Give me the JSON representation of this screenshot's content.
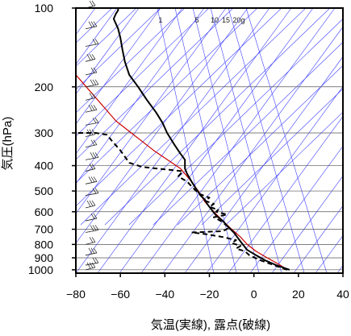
{
  "chart_data": {
    "type": "line",
    "xlabel": "気温(実線), 露点(破線)",
    "ylabel": "気圧(hPa)",
    "xlim": [
      -80,
      40
    ],
    "ylim": [
      1030,
      100
    ],
    "y_scale": "log",
    "x_ticks": [
      -80,
      -60,
      -40,
      -20,
      0,
      20,
      40
    ],
    "x_tick_labels": [
      "−80",
      "−60",
      "−40",
      "−20",
      "0",
      "20",
      "40"
    ],
    "y_ticks": [
      100,
      200,
      300,
      400,
      500,
      600,
      700,
      800,
      900,
      1000
    ],
    "y_tick_labels": [
      "100",
      "200",
      "300",
      "400",
      "500",
      "600",
      "700",
      "800",
      "900",
      "1000"
    ],
    "mixing_ratio_labels": [
      "1",
      "5",
      "10",
      "15",
      "20g"
    ],
    "series": [
      {
        "style": "solid",
        "color": "#000000",
        "points": [
          [
            16,
            1000
          ],
          [
            10,
            960
          ],
          [
            5,
            920
          ],
          [
            1,
            880
          ],
          [
            -3,
            840
          ],
          [
            -5,
            800
          ],
          [
            -7,
            760
          ],
          [
            -9,
            720
          ],
          [
            -12,
            680
          ],
          [
            -14,
            650
          ],
          [
            -17,
            620
          ],
          [
            -19,
            590
          ],
          [
            -21,
            560
          ],
          [
            -22,
            540
          ],
          [
            -24,
            520
          ],
          [
            -26,
            490
          ],
          [
            -28,
            460
          ],
          [
            -30,
            430
          ],
          [
            -31,
            410
          ],
          [
            -31,
            400
          ],
          [
            -31,
            380
          ],
          [
            -33,
            360
          ],
          [
            -36,
            330
          ],
          [
            -39,
            300
          ],
          [
            -41,
            275
          ],
          [
            -44,
            250
          ],
          [
            -48,
            225
          ],
          [
            -52,
            200
          ],
          [
            -56,
            180
          ],
          [
            -58,
            160
          ],
          [
            -59,
            145
          ],
          [
            -60,
            130
          ],
          [
            -61,
            120
          ],
          [
            -63,
            110
          ],
          [
            -62,
            105
          ],
          [
            -61,
            102
          ],
          [
            -61,
            100
          ]
        ]
      },
      {
        "style": "dashed",
        "color": "#000000",
        "points": [
          [
            15,
            1000
          ],
          [
            9,
            960
          ],
          [
            3,
            920
          ],
          [
            -2,
            880
          ],
          [
            -4,
            850
          ],
          [
            -8,
            830
          ],
          [
            -6,
            810
          ],
          [
            -10,
            790
          ],
          [
            -8,
            770
          ],
          [
            -14,
            750
          ],
          [
            -22,
            730
          ],
          [
            -28,
            720
          ],
          [
            -14,
            712
          ],
          [
            -11,
            690
          ],
          [
            -13,
            670
          ],
          [
            -15,
            650
          ],
          [
            -18,
            630
          ],
          [
            -12,
            615
          ],
          [
            -17,
            600
          ],
          [
            -16,
            590
          ],
          [
            -20,
            575
          ],
          [
            -18,
            560
          ],
          [
            -22,
            545
          ],
          [
            -20,
            530
          ],
          [
            -24,
            515
          ],
          [
            -26,
            500
          ],
          [
            -28,
            480
          ],
          [
            -30,
            460
          ],
          [
            -34,
            440
          ],
          [
            -32,
            420
          ],
          [
            -50,
            405
          ],
          [
            -56,
            390
          ],
          [
            -60,
            350
          ],
          [
            -64,
            320
          ],
          [
            -66,
            305
          ],
          [
            -71,
            300
          ],
          [
            -80,
            300
          ]
        ]
      },
      {
        "style": "solid",
        "color": "#cc0000",
        "points": [
          [
            15,
            1000
          ],
          [
            11,
            950
          ],
          [
            6,
            900
          ],
          [
            1,
            850
          ],
          [
            -3,
            800
          ],
          [
            -6,
            750
          ],
          [
            -10,
            700
          ],
          [
            -14,
            650
          ],
          [
            -18,
            600
          ],
          [
            -22,
            550
          ],
          [
            -25,
            500
          ],
          [
            -29,
            450
          ],
          [
            -33,
            410
          ],
          [
            -45,
            350
          ],
          [
            -62,
            270
          ],
          [
            -80,
            180
          ]
        ]
      }
    ],
    "colors": {
      "isotherm": "#4040ff",
      "axis": "#000000",
      "parcel": "#cc0000"
    },
    "wind_barbs": "left-edge column of wind barbs from 1000 to 100 hPa",
    "grid": true
  }
}
